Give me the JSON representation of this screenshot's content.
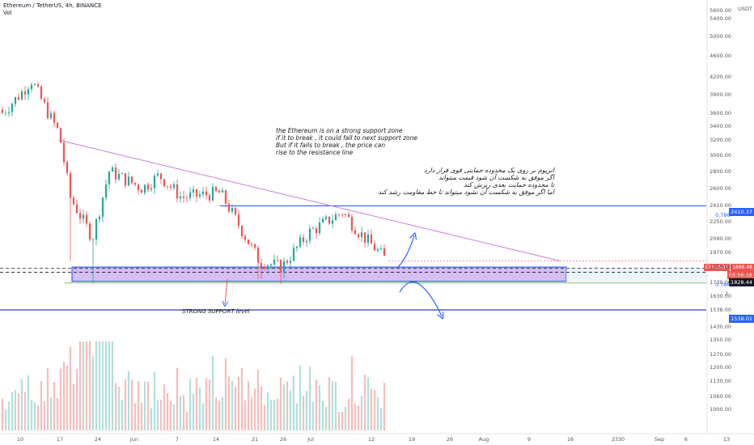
{
  "header": {
    "symbol_line": "Ethereum / TetherUS, 4h, BINANCE",
    "vol_label": "Vol"
  },
  "annotations": {
    "english_note": "the Ethereum is on a strong support zone\nif it to break , it could fall to next support zone\nBut if it fails to break , the price can\nrise to the resistance line",
    "persian_note": "اتریوم بر روی یک محدوده حمایتی قوی قرار دارد\nاگر موفق به شکست آن شود قیمت میتواند\nتا محدوده حمایت بعدی ریزش کند\nاما اگر موفق به شکست آن نشود میتواند تا خط مقاومت رشد کند",
    "support_label": "STRONG SUPPORT level"
  },
  "price_tags": {
    "currency": "USDT",
    "resistance": "2410.37",
    "current_symbol": "ETHUSDT",
    "current_price": "1896.48",
    "countdown": "03:56:16",
    "support_top": "1828.44",
    "next_support": "1538.01",
    "fib_0786_upper": "0.786",
    "fib_0786_lower": "0.786",
    "fib_2": "2"
  },
  "colors": {
    "up": "#26a69a",
    "down": "#ef5350",
    "support_fill": "#b388e6",
    "support_border": "#2962ff",
    "trendline": "#c77dd8",
    "arrow": "#2962ff"
  },
  "chart_data": {
    "type": "candlestick",
    "symbol": "ETHUSDT",
    "timeframe": "4h",
    "exchange": "BINANCE",
    "y_axis": {
      "scale": "log",
      "ticks": [
        5600,
        5400,
        5000,
        4600,
        4200,
        3900,
        3600,
        3400,
        3200,
        3000,
        2800,
        2600,
        2410,
        2250,
        2090,
        1970,
        1850,
        1730,
        1630,
        1538,
        1430,
        1350,
        1270,
        1200,
        1130,
        1060,
        1000
      ],
      "tick_labels": [
        "5600.00",
        "5400.00",
        "5000.00",
        "4600.00",
        "4200.00",
        "3900.00",
        "3600.00",
        "3400.00",
        "3200.00",
        "3000.00",
        "2800.00",
        "2600.00",
        "2410.00",
        "2250.00",
        "2090.00",
        "1970.00",
        "1850.00",
        "1730.00",
        "1630.00",
        "1538.00",
        "1430.00",
        "1350.00",
        "1270.00",
        "1200.00",
        "1130.00",
        "1060.00",
        "1000.00"
      ],
      "range": [
        950,
        5800
      ]
    },
    "x_axis": {
      "ticks": [
        "10",
        "17",
        "24",
        "Jun",
        "7",
        "14",
        "21",
        "26",
        "Jul",
        "12",
        "19",
        "26",
        "Aug",
        "9",
        "16",
        "23",
        "30",
        "Sep",
        "6",
        "13"
      ]
    },
    "approx_close_path": [
      {
        "date": "May 10",
        "close": 3900
      },
      {
        "date": "May 12",
        "close": 4150
      },
      {
        "date": "May 15",
        "close": 3600
      },
      {
        "date": "May 17",
        "close": 3300
      },
      {
        "date": "May 19",
        "close": 2500
      },
      {
        "date": "May 23",
        "close": 2100
      },
      {
        "date": "May 26",
        "close": 2800
      },
      {
        "date": "Jun 1",
        "close": 2600
      },
      {
        "date": "Jun 4",
        "close": 2750
      },
      {
        "date": "Jun 8",
        "close": 2500
      },
      {
        "date": "Jun 15",
        "close": 2550
      },
      {
        "date": "Jun 18",
        "close": 2250
      },
      {
        "date": "Jun 22",
        "close": 1900
      },
      {
        "date": "Jun 26",
        "close": 1850
      },
      {
        "date": "Jul 1",
        "close": 2150
      },
      {
        "date": "Jul 7",
        "close": 2350
      },
      {
        "date": "Jul 10",
        "close": 2150
      },
      {
        "date": "Jul 14",
        "close": 1950
      },
      {
        "date": "Jul 15",
        "close": 1896.48
      }
    ],
    "levels": {
      "resistance": 2410.37,
      "support_zone": [
        1740,
        1850
      ],
      "next_support": 1538.01,
      "fib_0786": 1830
    },
    "trendline": {
      "from": {
        "date": "May 17",
        "price": 3200
      },
      "to": {
        "date": "Aug 2",
        "price": 1900
      }
    }
  }
}
